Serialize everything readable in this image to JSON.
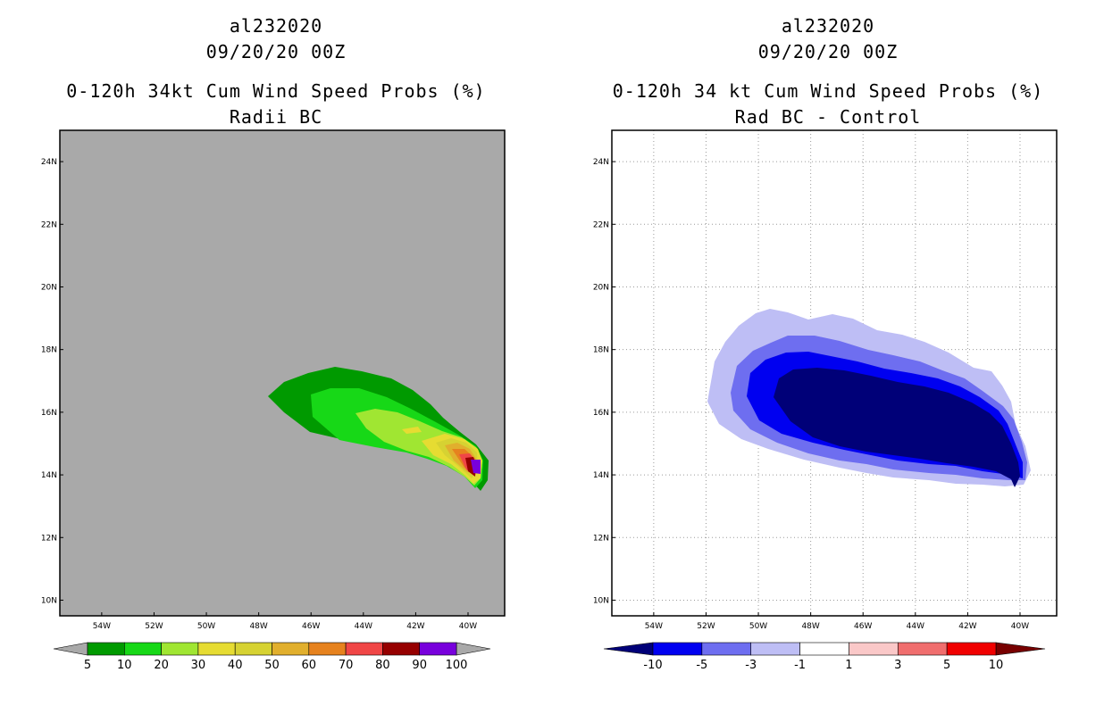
{
  "chart_data": [
    {
      "type": "filled-contour-map",
      "title_lines": [
        "al232020",
        "09/20/20 00Z",
        "0-120h 34kt Cum Wind Speed Probs (%)",
        "Radii BC"
      ],
      "lon_labels": [
        "54W",
        "52W",
        "50W",
        "48W",
        "46W",
        "44W",
        "42W",
        "40W"
      ],
      "lat_labels": [
        "10N",
        "12N",
        "14N",
        "16N",
        "18N",
        "20N",
        "22N",
        "24N"
      ],
      "xlim": [
        -55.6,
        -38.6
      ],
      "ylim": [
        9.5,
        25
      ],
      "grid": false,
      "colorbar": {
        "labels": [
          "5",
          "10",
          "20",
          "30",
          "40",
          "50",
          "60",
          "70",
          "80",
          "90",
          "100"
        ],
        "levels": [
          5,
          10,
          20,
          30,
          40,
          50,
          60,
          70,
          80,
          90,
          100
        ],
        "colors": [
          "#009a00",
          "#17d817",
          "#a0e632",
          "#e6dc32",
          "#d6d232",
          "#e1af2d",
          "#e6821e",
          "#f04646",
          "#960000",
          "#7800dc"
        ],
        "under_color": "#a9a9a9",
        "over_color": "#a9a9a9"
      },
      "background_color": "#a9a9a9"
    },
    {
      "type": "filled-contour-map",
      "title_lines": [
        "al232020",
        "09/20/20 00Z",
        "0-120h 34 kt Cum Wind Speed Probs (%)",
        "Rad BC - Control"
      ],
      "lon_labels": [
        "54W",
        "52W",
        "50W",
        "48W",
        "46W",
        "44W",
        "42W",
        "40W"
      ],
      "lat_labels": [
        "10N",
        "12N",
        "14N",
        "16N",
        "18N",
        "20N",
        "22N",
        "24N"
      ],
      "xlim": [
        -55.6,
        -38.6
      ],
      "ylim": [
        9.5,
        25
      ],
      "grid": true,
      "colorbar": {
        "labels": [
          "-10",
          "-5",
          "-3",
          "-1",
          "1",
          "3",
          "5",
          "10"
        ],
        "levels": [
          -10,
          -5,
          -3,
          -1,
          1,
          3,
          5,
          10
        ],
        "colors": [
          "#0000f0",
          "#6e6ef0",
          "#bebef5",
          "#ffffff",
          "#fac8c8",
          "#f06e6e",
          "#f00000"
        ],
        "under_color": "#000078",
        "over_color": "#780000"
      },
      "background_color": "#ffffff"
    }
  ]
}
